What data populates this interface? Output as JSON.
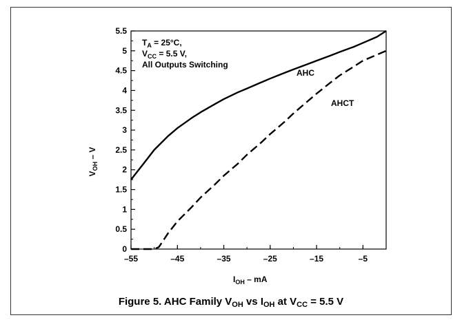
{
  "chart_data": {
    "type": "line",
    "xlabel": "I",
    "xlabel_sub": "OH",
    "xlabel_unit": " – mA",
    "ylabel": "V",
    "ylabel_sub": "OH",
    "ylabel_unit": " – V",
    "xlim": [
      -55,
      0
    ],
    "ylim": [
      0,
      5.5
    ],
    "x_ticks": [
      -55,
      -45,
      -35,
      -25,
      -15,
      -5
    ],
    "x_tick_labels": [
      "–55",
      "–45",
      "–35",
      "–25",
      "–15",
      "–5"
    ],
    "y_ticks": [
      0,
      0.5,
      1,
      1.5,
      2,
      2.5,
      3,
      3.5,
      4,
      4.5,
      5,
      5.5
    ],
    "y_tick_labels": [
      "0",
      "0.5",
      "1",
      "1.5",
      "2",
      "2.5",
      "3",
      "3.5",
      "4",
      "4.5",
      "5",
      "5.5"
    ],
    "grid": false,
    "annotations": {
      "ta": "T",
      "ta_sub": "A",
      "ta_rest": " = 25°C,",
      "vcc": "V",
      "vcc_sub": "CC",
      "vcc_rest": " = 5.5 V,",
      "outputs": "All Outputs Switching"
    },
    "series": [
      {
        "name": "AHC",
        "style": "solid",
        "x": [
          -55,
          -52,
          -50,
          -47,
          -45,
          -42,
          -40,
          -37,
          -35,
          -32,
          -30,
          -27,
          -25,
          -22,
          -20,
          -17,
          -15,
          -12,
          -10,
          -7,
          -5,
          -2,
          0
        ],
        "y": [
          1.75,
          2.2,
          2.5,
          2.85,
          3.05,
          3.3,
          3.45,
          3.65,
          3.78,
          3.95,
          4.05,
          4.2,
          4.3,
          4.44,
          4.53,
          4.66,
          4.75,
          4.88,
          4.97,
          5.1,
          5.2,
          5.35,
          5.5
        ]
      },
      {
        "name": "AHCT",
        "style": "dashed",
        "x": [
          -55,
          -53,
          -51,
          -50,
          -49,
          -47,
          -45,
          -42,
          -40,
          -37,
          -35,
          -32,
          -30,
          -27,
          -25,
          -22,
          -20,
          -17,
          -15,
          -12,
          -10,
          -7,
          -5,
          -2,
          0
        ],
        "y": [
          0,
          0,
          0,
          0,
          0.05,
          0.4,
          0.7,
          1.05,
          1.3,
          1.62,
          1.85,
          2.15,
          2.38,
          2.68,
          2.9,
          3.2,
          3.42,
          3.72,
          3.92,
          4.2,
          4.38,
          4.6,
          4.75,
          4.9,
          5.0
        ]
      }
    ]
  },
  "caption": {
    "prefix": "Figure 5. AHC Family V",
    "sub1": "OH",
    "mid1": " vs I",
    "sub2": "OH",
    "mid2": " at V",
    "sub3": "CC",
    "suffix": " = 5.5 V"
  }
}
